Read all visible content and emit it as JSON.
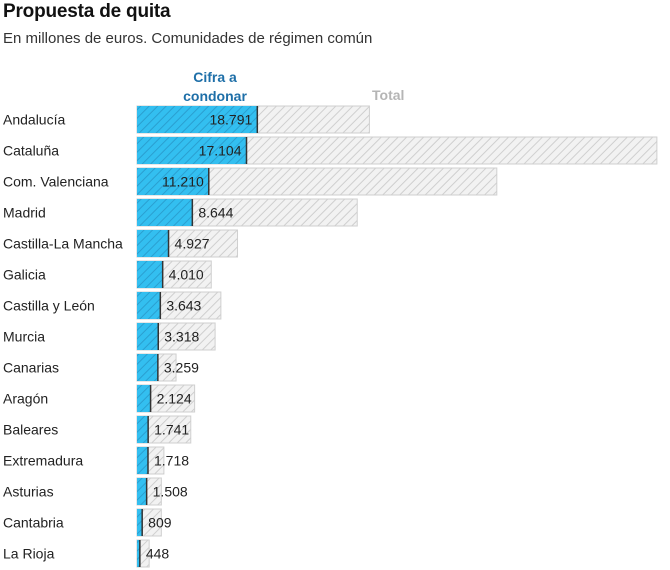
{
  "title": "Propuesta de quita",
  "subtitle": "En millones de euros. Comunidades de régimen común",
  "legend": {
    "cifra_label": "Cifra a condonar",
    "total_label": "Total"
  },
  "colors": {
    "cifra": "#33bff0",
    "cifra_hatch": "#2a9fd0",
    "total_fill": "#f2f2f2",
    "total_hatch": "#cfcfcf",
    "legend_cifra": "#1e6fa8",
    "legend_total": "#b5b5b5"
  },
  "chart_data": {
    "type": "bar",
    "orientation": "horizontal",
    "categories": [
      "Andalucía",
      "Cataluña",
      "Com. Valenciana",
      "Madrid",
      "Castilla-La Mancha",
      "Galicia",
      "Castilla y León",
      "Murcia",
      "Canarias",
      "Aragón",
      "Baleares",
      "Extremadura",
      "Asturias",
      "Cantabria",
      "La Rioja"
    ],
    "series": [
      {
        "name": "Cifra a condonar",
        "values": [
          18791,
          17104,
          11210,
          8644,
          4927,
          4010,
          3643,
          3318,
          3259,
          2124,
          1741,
          1718,
          1508,
          809,
          448
        ]
      },
      {
        "name": "Total",
        "values": [
          36300,
          81200,
          56200,
          34400,
          15700,
          11600,
          13100,
          12200,
          6100,
          9000,
          8400,
          4200,
          3800,
          3800,
          1900
        ]
      }
    ],
    "labels": [
      "18.791",
      "17.104",
      "11.210",
      "8.644",
      "4.927",
      "4.010",
      "3.643",
      "3.318",
      "3.259",
      "2.124",
      "1.741",
      "1.718",
      "1.508",
      "809",
      "448"
    ],
    "xlim": [
      0,
      82000
    ],
    "grid": false
  }
}
